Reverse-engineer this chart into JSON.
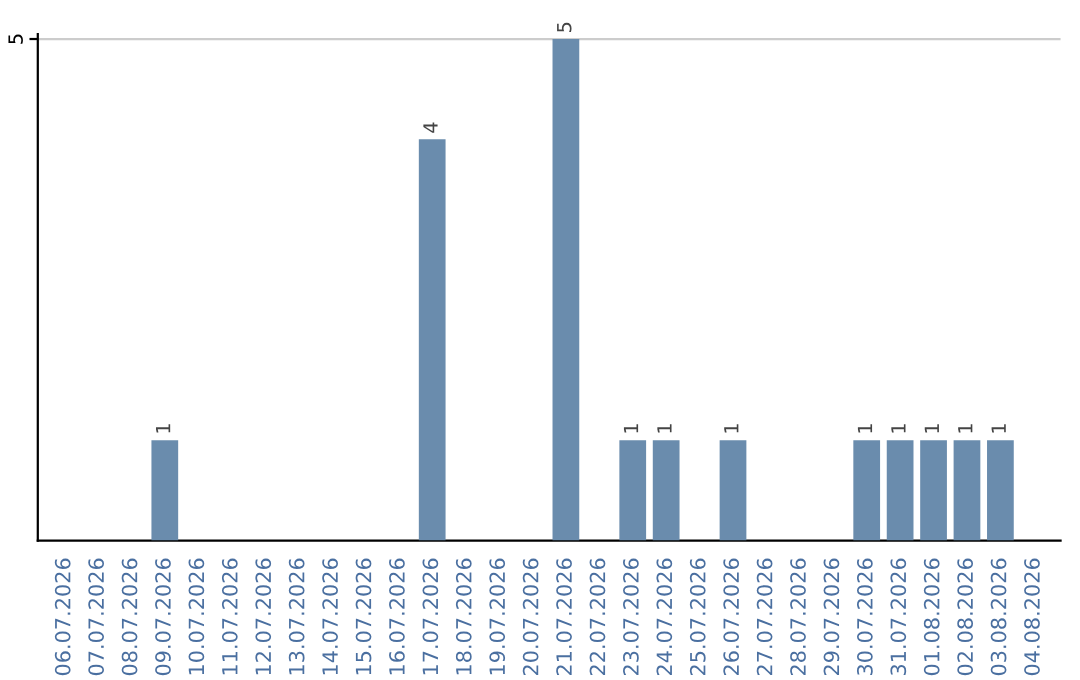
{
  "chart_data": {
    "type": "bar",
    "categories": [
      "06.07.2026",
      "07.07.2026",
      "08.07.2026",
      "09.07.2026",
      "10.07.2026",
      "11.07.2026",
      "12.07.2026",
      "13.07.2026",
      "14.07.2026",
      "15.07.2026",
      "16.07.2026",
      "17.07.2026",
      "18.07.2026",
      "19.07.2026",
      "20.07.2026",
      "21.07.2026",
      "22.07.2026",
      "23.07.2026",
      "24.07.2026",
      "25.07.2026",
      "26.07.2026",
      "27.07.2026",
      "28.07.2026",
      "29.07.2026",
      "30.07.2026",
      "31.07.2026",
      "01.08.2026",
      "02.08.2026",
      "03.08.2026",
      "04.08.2026"
    ],
    "values": [
      0,
      0,
      0,
      1,
      0,
      0,
      0,
      0,
      0,
      0,
      0,
      4,
      0,
      0,
      0,
      5,
      0,
      1,
      1,
      0,
      1,
      0,
      0,
      0,
      1,
      1,
      1,
      1,
      1,
      0
    ],
    "value_labels": [
      null,
      null,
      null,
      "1",
      null,
      null,
      null,
      null,
      null,
      null,
      null,
      "4",
      null,
      null,
      null,
      "5",
      null,
      "1",
      "1",
      null,
      "1",
      null,
      null,
      null,
      "1",
      "1",
      "1",
      "1",
      "1",
      null
    ],
    "color": "#6a8cad",
    "ylim": [
      0,
      5.05
    ],
    "yticks": [
      5
    ],
    "grid": "y"
  }
}
